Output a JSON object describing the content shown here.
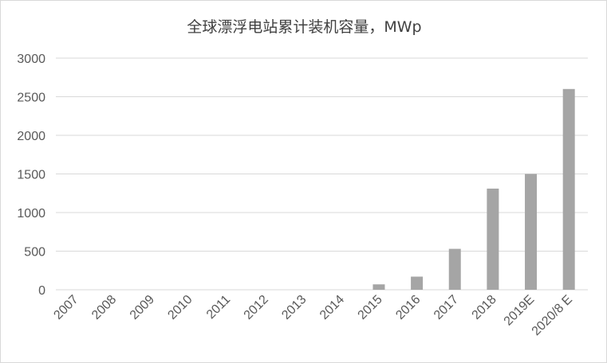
{
  "chart_data": {
    "type": "bar",
    "title": "全球漂浮电站累计装机容量，MWp",
    "xlabel": "",
    "ylabel": "",
    "categories": [
      "2007",
      "2008",
      "2009",
      "2010",
      "2011",
      "2012",
      "2013",
      "2014",
      "2015",
      "2016",
      "2017",
      "2018",
      "2019E",
      "2020/8 E"
    ],
    "values": [
      0,
      0,
      0,
      0,
      0,
      0,
      0,
      0,
      70,
      170,
      530,
      1310,
      1500,
      2600
    ],
    "ylim": [
      0,
      3000
    ],
    "yticks": [
      "0",
      "500",
      "1000",
      "1500",
      "2000",
      "2500",
      "3000"
    ],
    "grid": true,
    "legend": "none",
    "colors": {
      "bar": "#a5a5a5",
      "grid": "#d9d9d9",
      "axis": "#d9d9d9",
      "text": "#595959"
    }
  }
}
